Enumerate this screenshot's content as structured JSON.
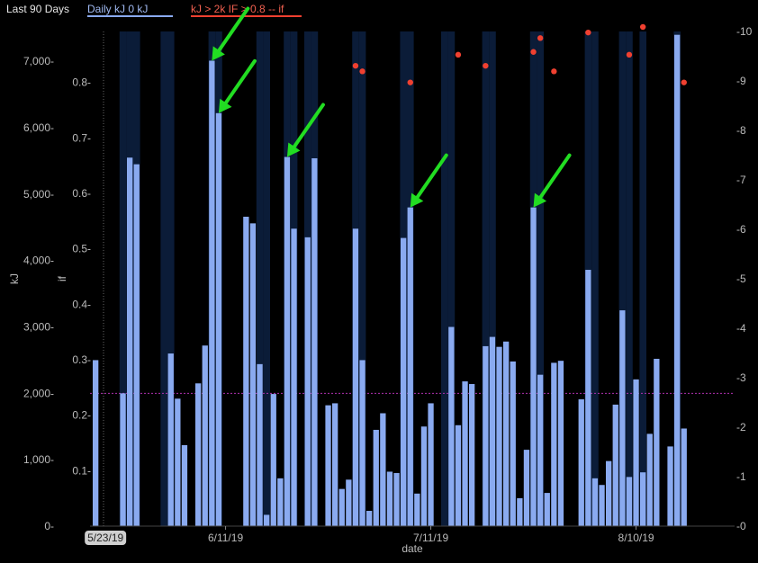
{
  "header": {
    "range_label": "Last 90 Days",
    "legend_daily": "Daily kJ  0 kJ",
    "legend_if": "kJ > 2k IF > 0.8  -- if"
  },
  "colors": {
    "background": "#000000",
    "bar": "#8aaaf0",
    "band": "#0b1c38",
    "if_point": "#f04030",
    "threshold_line": "#b030b0",
    "arrow": "#22dd22",
    "legend_daily_line": "#8aaaf0",
    "legend_if_line": "#f04030"
  },
  "chart_data": {
    "type": "bar",
    "xlabel": "date",
    "ylabel_left": "kJ",
    "ylabel_if": "if",
    "left_axis": {
      "ticks": [
        0,
        1000,
        2000,
        3000,
        4000,
        5000,
        6000,
        7000
      ],
      "tick_labels": [
        "0-",
        "1,000-",
        "2,000-",
        "3,000-",
        "4,000-",
        "5,000-",
        "6,000-",
        "7,000-"
      ],
      "ylim": [
        0,
        7450
      ]
    },
    "if_axis": {
      "ticks": [
        0.1,
        0.2,
        0.3,
        0.4,
        0.5,
        0.6,
        0.7,
        0.8
      ],
      "tick_labels": [
        "0.1-",
        "0.2-",
        "0.3-",
        "0.4-",
        "0.5-",
        "0.6-",
        "0.7-",
        "0.8-"
      ],
      "ylim": [
        0,
        0.9
      ]
    },
    "right_axis": {
      "ticks": [
        0,
        1,
        2,
        3,
        4,
        5,
        6,
        7,
        8,
        9,
        10
      ],
      "tick_labels": [
        "-0",
        "-1",
        "-2",
        "-3",
        "-4",
        "-5",
        "-6",
        "-7",
        "-8",
        "-9",
        "-10"
      ],
      "ylim": [
        0,
        10
      ]
    },
    "x_axis": {
      "first_date": "5/23/19",
      "tick_dates": [
        "6/11/19",
        "7/11/19",
        "8/10/19"
      ]
    },
    "threshold_kj": 2000,
    "days": [
      {
        "date": "5/23/19",
        "kj": 2500
      },
      {
        "date": "5/24/19",
        "kj": 0
      },
      {
        "date": "5/25/19",
        "kj": 0
      },
      {
        "date": "5/26/19",
        "kj": 0
      },
      {
        "date": "5/27/19",
        "kj": 2000,
        "band": true
      },
      {
        "date": "5/28/19",
        "kj": 5550,
        "band": true
      },
      {
        "date": "5/29/19",
        "kj": 5450,
        "band": true
      },
      {
        "date": "5/30/19",
        "kj": 0
      },
      {
        "date": "5/31/19",
        "kj": 0
      },
      {
        "date": "6/1/19",
        "kj": 0
      },
      {
        "date": "6/2/19",
        "kj": 0,
        "band": true
      },
      {
        "date": "6/3/19",
        "kj": 2600,
        "band": true
      },
      {
        "date": "6/4/19",
        "kj": 1920
      },
      {
        "date": "6/5/19",
        "kj": 1220
      },
      {
        "date": "6/6/19",
        "kj": 0
      },
      {
        "date": "6/7/19",
        "kj": 2150
      },
      {
        "date": "6/8/19",
        "kj": 2720
      },
      {
        "date": "6/9/19",
        "kj": 7010,
        "band": true
      },
      {
        "date": "6/10/19",
        "kj": 6220,
        "band": true
      },
      {
        "date": "6/11/19",
        "kj": 0
      },
      {
        "date": "6/12/19",
        "kj": 0
      },
      {
        "date": "6/13/19",
        "kj": 0
      },
      {
        "date": "6/14/19",
        "kj": 4660
      },
      {
        "date": "6/15/19",
        "kj": 4560
      },
      {
        "date": "6/16/19",
        "kj": 2440,
        "band": true
      },
      {
        "date": "6/17/19",
        "kj": 170,
        "band": true
      },
      {
        "date": "6/18/19",
        "kj": 1990
      },
      {
        "date": "6/19/19",
        "kj": 720
      },
      {
        "date": "6/20/19",
        "kj": 5560,
        "band": true
      },
      {
        "date": "6/21/19",
        "kj": 4480,
        "band": true
      },
      {
        "date": "6/22/19",
        "kj": 0
      },
      {
        "date": "6/23/19",
        "kj": 4350,
        "band": true
      },
      {
        "date": "6/24/19",
        "kj": 5540,
        "band": true
      },
      {
        "date": "6/25/19",
        "kj": 0
      },
      {
        "date": "6/26/19",
        "kj": 1820
      },
      {
        "date": "6/27/19",
        "kj": 1850
      },
      {
        "date": "6/28/19",
        "kj": 560
      },
      {
        "date": "6/29/19",
        "kj": 700
      },
      {
        "date": "6/30/19",
        "kj": 4480,
        "band": true
      },
      {
        "date": "7/1/19",
        "kj": 2500,
        "band": true
      },
      {
        "date": "7/2/19",
        "kj": 230
      },
      {
        "date": "7/3/19",
        "kj": 1450
      },
      {
        "date": "7/4/19",
        "kj": 1700
      },
      {
        "date": "7/5/19",
        "kj": 820
      },
      {
        "date": "7/6/19",
        "kj": 800
      },
      {
        "date": "7/7/19",
        "kj": 4340,
        "band": true
      },
      {
        "date": "7/8/19",
        "kj": 4800,
        "band": true
      },
      {
        "date": "7/9/19",
        "kj": 490
      },
      {
        "date": "7/10/19",
        "kj": 1500
      },
      {
        "date": "7/11/19",
        "kj": 1850
      },
      {
        "date": "7/12/19",
        "kj": 0
      },
      {
        "date": "7/13/19",
        "kj": 0,
        "band": true
      },
      {
        "date": "7/14/19",
        "kj": 3000,
        "band": true
      },
      {
        "date": "7/15/19",
        "kj": 1520
      },
      {
        "date": "7/16/19",
        "kj": 2180
      },
      {
        "date": "7/17/19",
        "kj": 2140
      },
      {
        "date": "7/18/19",
        "kj": 0
      },
      {
        "date": "7/19/19",
        "kj": 2710,
        "band": true
      },
      {
        "date": "7/20/19",
        "kj": 2850,
        "band": true
      },
      {
        "date": "7/21/19",
        "kj": 2700
      },
      {
        "date": "7/22/19",
        "kj": 2780
      },
      {
        "date": "7/23/19",
        "kj": 2480
      },
      {
        "date": "7/24/19",
        "kj": 420
      },
      {
        "date": "7/25/19",
        "kj": 1150
      },
      {
        "date": "7/26/19",
        "kj": 4800,
        "band": true
      },
      {
        "date": "7/27/19",
        "kj": 2280,
        "band": true
      },
      {
        "date": "7/28/19",
        "kj": 500
      },
      {
        "date": "7/29/19",
        "kj": 2460
      },
      {
        "date": "7/30/19",
        "kj": 2490
      },
      {
        "date": "7/31/19",
        "kj": 0
      },
      {
        "date": "8/1/19",
        "kj": 0
      },
      {
        "date": "8/2/19",
        "kj": 1910
      },
      {
        "date": "8/3/19",
        "kj": 3860,
        "band": true
      },
      {
        "date": "8/4/19",
        "kj": 720,
        "band": true
      },
      {
        "date": "8/5/19",
        "kj": 620
      },
      {
        "date": "8/6/19",
        "kj": 980
      },
      {
        "date": "8/7/19",
        "kj": 1830
      },
      {
        "date": "8/8/19",
        "kj": 3250,
        "band": true
      },
      {
        "date": "8/9/19",
        "kj": 740,
        "band": true
      },
      {
        "date": "8/10/19",
        "kj": 2210
      },
      {
        "date": "8/11/19",
        "kj": 810,
        "band": true
      },
      {
        "date": "8/12/19",
        "kj": 1390
      },
      {
        "date": "8/13/19",
        "kj": 2520
      },
      {
        "date": "8/14/19",
        "kj": 0
      },
      {
        "date": "8/15/19",
        "kj": 1200
      },
      {
        "date": "8/16/19",
        "kj": 7400,
        "band": true
      },
      {
        "date": "8/17/19",
        "kj": 1470
      }
    ],
    "if_points": [
      {
        "date": "6/30/19",
        "if": 0.83
      },
      {
        "date": "7/1/19",
        "if": 0.82
      },
      {
        "date": "7/8/19",
        "if": 0.8
      },
      {
        "date": "7/15/19",
        "if": 0.85
      },
      {
        "date": "7/19/19",
        "if": 0.83
      },
      {
        "date": "7/26/19",
        "if": 0.855
      },
      {
        "date": "7/27/19",
        "if": 0.88
      },
      {
        "date": "7/29/19",
        "if": 0.82
      },
      {
        "date": "8/3/19",
        "if": 0.89
      },
      {
        "date": "8/9/19",
        "if": 0.85
      },
      {
        "date": "8/11/19",
        "if": 0.9
      },
      {
        "date": "8/17/19",
        "if": 0.8
      }
    ],
    "annotation_arrows": [
      {
        "date": "6/9/19",
        "kj": 7010
      },
      {
        "date": "6/10/19",
        "kj": 6220
      },
      {
        "date": "6/20/19",
        "kj": 5560
      },
      {
        "date": "7/8/19",
        "kj": 4800
      },
      {
        "date": "7/26/19",
        "kj": 4800
      }
    ]
  }
}
